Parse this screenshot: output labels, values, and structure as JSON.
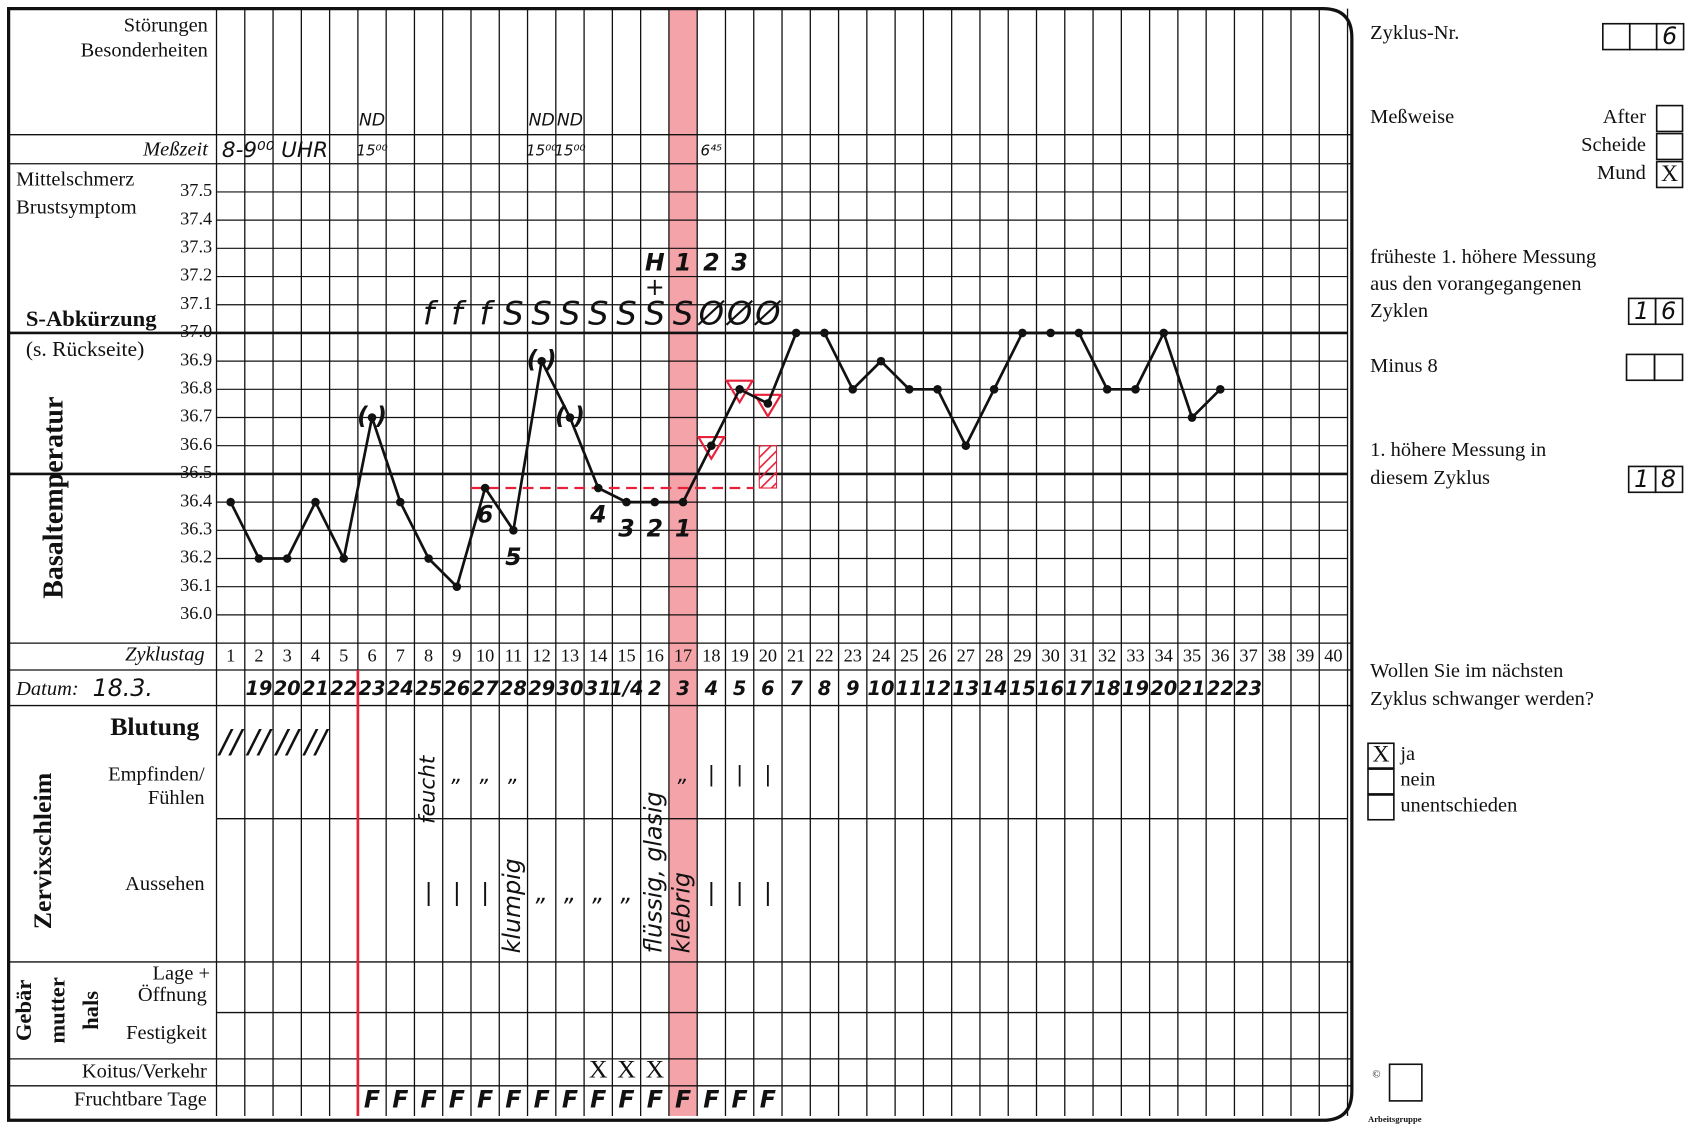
{
  "form": {
    "disturbances_label": [
      "Störungen",
      "Besonderheiten"
    ],
    "time_label": "Meßzeit",
    "symptom_labels": [
      "Mittelschmerz",
      "Brustsymptom"
    ],
    "s_label": [
      "S-Abkürzung",
      "(s. Rückseite)"
    ],
    "cycle_day_label": "Zyklustag",
    "date_label": "Datum:",
    "bleeding_label": "Blutung",
    "mucus_label": "Zervixschleim",
    "feeling_label": [
      "Empfinden/",
      "Fühlen"
    ],
    "appearance_label": "Aussehen",
    "cervix_label": [
      "Gebär",
      "mutter",
      "hals"
    ],
    "position_label": [
      "Lage +",
      "Öffnung"
    ],
    "firmness_label": "Festigkeit",
    "intercourse_label": "Koitus/Verkehr",
    "fertile_label": "Fruchtbare Tage"
  },
  "chart_data": {
    "type": "line",
    "ylabel": "Basaltemperatur",
    "x": [
      1,
      2,
      3,
      4,
      5,
      6,
      7,
      8,
      9,
      10,
      11,
      12,
      13,
      14,
      15,
      16,
      17,
      18,
      19,
      20,
      21,
      22,
      23,
      24,
      25,
      26,
      27,
      28,
      29,
      30,
      31,
      32,
      33,
      34,
      35,
      36,
      37,
      38,
      39,
      40
    ],
    "values": [
      36.4,
      36.2,
      36.2,
      36.4,
      36.2,
      36.7,
      36.4,
      36.2,
      36.1,
      36.45,
      36.3,
      36.9,
      36.7,
      36.45,
      36.4,
      36.4,
      36.4,
      36.6,
      36.8,
      36.75,
      37.0,
      37.0,
      36.8,
      36.9,
      36.8,
      36.8,
      36.6,
      36.8,
      37.0,
      37.0,
      37.0,
      36.8,
      36.8,
      37.0,
      36.7,
      36.8,
      null,
      null,
      null,
      null
    ],
    "xlim": [
      0.5,
      40.5
    ],
    "ylim": [
      35.9,
      37.6
    ],
    "yticks": [
      {
        "value": 36,
        "label": "36.0"
      },
      36.1,
      36.2,
      36.3,
      36.4,
      36.5,
      36.6,
      36.7,
      36.8,
      36.9,
      {
        "value": 37,
        "label": "37.0"
      },
      37.1,
      37.2,
      37.3,
      37.4,
      37.5
    ],
    "major_yticks": [
      36.5,
      37
    ],
    "line_color": "#111111",
    "accent_color": "#e8203a",
    "highlight_color": "#f4a3a9",
    "highlight_day": 17,
    "cover_line": {
      "value": 36.45,
      "from": 10,
      "to": 19
    },
    "triangle_days": [
      18,
      19,
      20
    ],
    "hatch": {
      "day": 20,
      "from": 36.45,
      "to": 36.6
    }
  },
  "handwriting": {
    "time_start": "8-9⁰⁰ UHR",
    "nd": [
      null,
      null,
      null,
      null,
      null,
      "ND",
      null,
      null,
      null,
      null,
      null,
      "ND",
      "ND",
      null,
      null,
      null,
      null,
      null,
      null,
      null,
      null,
      null,
      null,
      null,
      null,
      null,
      null,
      null,
      null,
      null,
      null,
      null,
      null,
      null,
      null,
      null,
      null,
      null,
      null,
      null
    ],
    "time": [
      null,
      null,
      null,
      null,
      null,
      "15⁰⁰",
      null,
      null,
      null,
      null,
      null,
      "15⁰⁰",
      "15⁰⁰",
      null,
      null,
      null,
      null,
      "6⁴⁵",
      null,
      null,
      null,
      null,
      null,
      null,
      null,
      null,
      null,
      null,
      null,
      null,
      null,
      null,
      null,
      null,
      null,
      null,
      null,
      null,
      null,
      null
    ],
    "s_codes": [
      null,
      null,
      null,
      null,
      null,
      null,
      null,
      "f",
      "f",
      "f",
      "S",
      "S",
      "S",
      "S",
      "S",
      "S",
      "S",
      "Ø",
      "Ø",
      "Ø",
      null,
      null,
      null,
      null,
      null,
      null,
      null,
      null,
      null,
      null,
      null,
      null,
      null,
      null,
      null,
      null,
      null,
      null,
      null,
      null
    ],
    "rule_marks": [
      null,
      null,
      null,
      null,
      null,
      null,
      null,
      null,
      null,
      null,
      null,
      null,
      null,
      null,
      null,
      "H",
      "1",
      "2",
      "3",
      null,
      null,
      null,
      null,
      null,
      null,
      null,
      null,
      null,
      null,
      null,
      null,
      null,
      null,
      null,
      null,
      null,
      null,
      null,
      null,
      null
    ],
    "cross": [
      null,
      null,
      null,
      null,
      null,
      null,
      null,
      null,
      null,
      null,
      null,
      null,
      null,
      null,
      null,
      "+",
      null,
      null,
      null,
      null,
      null,
      null,
      null,
      null,
      null,
      null,
      null,
      null,
      null,
      null,
      null,
      null,
      null,
      null,
      null,
      null,
      null,
      null,
      null,
      null
    ],
    "disturbed": [
      null,
      null,
      null,
      null,
      null,
      "( )",
      null,
      null,
      null,
      null,
      null,
      "( )",
      "( )",
      null,
      null,
      null,
      null,
      null,
      null,
      null,
      null,
      null,
      null,
      null,
      null,
      null,
      null,
      null,
      null,
      null,
      null,
      null,
      null,
      null,
      null,
      null,
      null,
      null,
      null,
      null
    ],
    "low_count": [
      null,
      null,
      null,
      null,
      null,
      null,
      null,
      null,
      null,
      "6",
      "5",
      null,
      null,
      "4",
      "3",
      "2",
      "1",
      null,
      null,
      null,
      null,
      null,
      null,
      null,
      null,
      null,
      null,
      null,
      null,
      null,
      null,
      null,
      null,
      null,
      null,
      null,
      null,
      null,
      null,
      null
    ],
    "date_start": "18.3.",
    "dates": [
      null,
      "19",
      "20",
      "21",
      "22",
      "23",
      "24",
      "25",
      "26",
      "27",
      "28",
      "29",
      "30",
      "31",
      "1/4",
      "2",
      "3",
      "4",
      "5",
      "6",
      "7",
      "8",
      "9",
      "10",
      "11",
      "12",
      "13",
      "14",
      "15",
      "16",
      "17",
      "18",
      "19",
      "20",
      "21",
      "22",
      "23",
      null,
      null,
      null
    ],
    "bleeding": [
      "//",
      "//",
      "//",
      "//",
      null,
      null,
      null,
      null,
      null,
      null,
      null,
      null,
      null,
      null,
      null,
      null,
      null,
      null,
      null,
      null,
      null,
      null,
      null,
      null,
      null,
      null,
      null,
      null,
      null,
      null,
      null,
      null,
      null,
      null,
      null,
      null,
      null,
      null,
      null,
      null
    ],
    "feeling": [
      null,
      null,
      null,
      null,
      null,
      null,
      null,
      "feucht",
      "„",
      "„",
      "„",
      null,
      null,
      null,
      null,
      null,
      "„",
      "|",
      "|",
      "|",
      null,
      null,
      null,
      null,
      null,
      null,
      null,
      null,
      null,
      null,
      null,
      null,
      null,
      null,
      null,
      null,
      null,
      null,
      null,
      null
    ],
    "appearance": [
      null,
      null,
      null,
      null,
      null,
      null,
      null,
      "|",
      "|",
      "|",
      "klumpig",
      "„",
      "„",
      "„",
      "„",
      "flüssig, glasig",
      "klebrig",
      "|",
      "|",
      "|",
      null,
      null,
      null,
      null,
      null,
      null,
      null,
      null,
      null,
      null,
      null,
      null,
      null,
      null,
      null,
      null,
      null,
      null,
      null,
      null
    ],
    "intercourse": [
      null,
      null,
      null,
      null,
      null,
      null,
      null,
      null,
      null,
      null,
      null,
      null,
      null,
      "X",
      "X",
      "X",
      null,
      null,
      null,
      null,
      null,
      null,
      null,
      null,
      null,
      null,
      null,
      null,
      null,
      null,
      null,
      null,
      null,
      null,
      null,
      null,
      null,
      null,
      null,
      null
    ],
    "fertile": [
      null,
      null,
      null,
      null,
      null,
      "F",
      "F",
      "F",
      "F",
      "F",
      "F",
      "F",
      "F",
      "F",
      "F",
      "F",
      "F",
      "F",
      "F",
      "F",
      null,
      null,
      null,
      null,
      null,
      null,
      null,
      null,
      null,
      null,
      null,
      null,
      null,
      null,
      null,
      null,
      null,
      null,
      null,
      null
    ]
  },
  "side": {
    "cycle_no_label": "Zyklus-Nr.",
    "cycle_no": "6",
    "method_label": "Meßweise",
    "methods": [
      {
        "label": "After"
      },
      {
        "label": "Scheide"
      },
      {
        "label": "Mund",
        "mark": "X"
      }
    ],
    "earliest_label": [
      "früheste 1. höhere Messung",
      "aus den vorangegangenen",
      "Zyklen"
    ],
    "earliest_value": [
      "1",
      "6"
    ],
    "minus8_label": "Minus 8",
    "first_higher_label": [
      "1. höhere Messung in",
      "diesem Zyklus"
    ],
    "first_higher_value": [
      "1",
      "8"
    ],
    "question": [
      "Wollen Sie im nächsten",
      "Zyklus schwanger werden?"
    ],
    "answers": [
      {
        "label": "ja",
        "mark": "X"
      },
      {
        "label": "nein"
      },
      {
        "label": "unentschieden"
      }
    ],
    "copyright": "©",
    "publisher": "Arbeitsgruppe"
  }
}
